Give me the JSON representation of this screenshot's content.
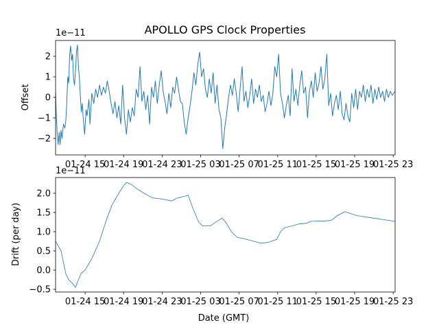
{
  "chart_data": [
    {
      "type": "line",
      "title": "APOLLO GPS Clock Properties",
      "xlabel": "",
      "ylabel": "Offset",
      "y_scale_label": "1e−11",
      "color": "#1f77b4",
      "x_units": "hours since 01-24 00:00 GMT",
      "xlim": [
        11.93,
        47.2
      ],
      "ylim": [
        -2.8,
        2.77
      ],
      "xticks": [
        15,
        19,
        23,
        27,
        31,
        35,
        39,
        43,
        47
      ],
      "xtick_labels": [
        "01-24 15",
        "01-24 19",
        "01-24 23",
        "01-25 03",
        "01-25 07",
        "01-25 11",
        "01-25 15",
        "01-25 19",
        "01-25 23"
      ],
      "yticks": [
        -2,
        -1,
        0,
        1,
        2
      ],
      "ytick_labels": [
        "−2",
        "−1",
        "0",
        "1",
        "2"
      ],
      "x": [
        11.93,
        12.0,
        12.1,
        12.2,
        12.3,
        12.4,
        12.5,
        12.6,
        12.75,
        12.9,
        13.0,
        13.1,
        13.2,
        13.3,
        13.4,
        13.5,
        13.6,
        13.7,
        13.8,
        13.9,
        14.0,
        14.1,
        14.2,
        14.3,
        14.4,
        14.5,
        14.6,
        14.7,
        14.8,
        14.95,
        15.1,
        15.2,
        15.4,
        15.5,
        15.7,
        15.9,
        16.1,
        16.3,
        16.5,
        16.7,
        16.9,
        17.1,
        17.3,
        17.5,
        17.7,
        17.9,
        18.1,
        18.3,
        18.5,
        18.7,
        18.9,
        19.1,
        19.3,
        19.5,
        19.7,
        19.9,
        20.1,
        20.3,
        20.5,
        20.7,
        20.9,
        21.1,
        21.3,
        21.5,
        21.7,
        21.9,
        22.1,
        22.3,
        22.5,
        22.7,
        22.9,
        23.1,
        23.3,
        23.5,
        23.7,
        23.9,
        24.1,
        24.3,
        24.5,
        24.7,
        24.9,
        25.1,
        25.3,
        25.5,
        25.7,
        25.9,
        26.1,
        26.3,
        26.5,
        26.7,
        26.9,
        27.1,
        27.3,
        27.5,
        27.7,
        27.9,
        28.1,
        28.3,
        28.5,
        28.7,
        28.9,
        29.1,
        29.3,
        29.5,
        29.7,
        29.9,
        30.1,
        30.3,
        30.5,
        30.7,
        30.9,
        31.1,
        31.3,
        31.5,
        31.7,
        31.9,
        32.1,
        32.3,
        32.5,
        32.7,
        32.9,
        33.1,
        33.3,
        33.5,
        33.7,
        33.9,
        34.1,
        34.3,
        34.5,
        34.7,
        34.9,
        35.1,
        35.3,
        35.5,
        35.7,
        35.9,
        36.1,
        36.3,
        36.5,
        36.7,
        36.9,
        37.1,
        37.3,
        37.5,
        37.7,
        37.9,
        38.1,
        38.3,
        38.5,
        38.7,
        38.9,
        39.1,
        39.3,
        39.5,
        39.7,
        39.9,
        40.1,
        40.3,
        40.5,
        40.7,
        40.9,
        41.1,
        41.3,
        41.5,
        41.7,
        41.9,
        42.1,
        42.3,
        42.5,
        42.7,
        42.9,
        43.1,
        43.3,
        43.5,
        43.7,
        43.9,
        44.1,
        44.3,
        44.5,
        44.7,
        44.9,
        45.1,
        45.3,
        45.5,
        45.7,
        45.9,
        46.1,
        46.3,
        46.5,
        46.7,
        46.9,
        47.2
      ],
      "y": [
        0.3,
        -0.8,
        -1.8,
        -2.3,
        -1.7,
        -2.3,
        -1.6,
        -2.0,
        -1.3,
        -1.5,
        -1.1,
        -0.2,
        1.0,
        0.7,
        2.1,
        2.5,
        1.8,
        2.1,
        0.9,
        0.6,
        1.3,
        2.2,
        2.55,
        1.5,
        1.0,
        0.1,
        -0.7,
        -0.3,
        -1.0,
        -1.8,
        -0.6,
        -0.9,
        -0.1,
        -1.3,
        0.2,
        -0.3,
        0.4,
        0.0,
        0.6,
        0.1,
        0.5,
        0.2,
        0.8,
        0.3,
        -0.3,
        -0.8,
        -0.2,
        -1.0,
        -0.4,
        -1.3,
        0.6,
        -1.0,
        -1.8,
        -0.6,
        -1.2,
        -0.5,
        -0.9,
        0.4,
        0.0,
        1.5,
        -0.2,
        0.3,
        -0.6,
        0.1,
        -1.3,
        0.5,
        0.0,
        0.8,
        -0.3,
        0.6,
        1.3,
        0.3,
        -0.2,
        -0.8,
        0.2,
        -0.5,
        0.5,
        0.2,
        1.0,
        0.4,
        -0.2,
        -0.3,
        -1.2,
        -1.8,
        -1.0,
        -0.4,
        0.3,
        1.2,
        0.6,
        1.6,
        2.2,
        1.0,
        1.4,
        0.4,
        0.0,
        0.9,
        0.2,
        1.2,
        -0.3,
        0.6,
        -0.6,
        -1.0,
        -2.5,
        -1.5,
        -0.8,
        0.0,
        0.6,
        0.1,
        0.9,
        0.2,
        -0.7,
        0.4,
        1.5,
        -0.2,
        0.3,
        -0.5,
        0.1,
        0.9,
        -0.3,
        0.4,
        0.0,
        0.6,
        -0.2,
        0.1,
        -0.7,
        -0.3,
        0.3,
        -0.4,
        0.2,
        1.5,
        1.0,
        2.1,
        0.2,
        -0.3,
        -1.0,
        -0.4,
        0.1,
        -0.9,
        1.4,
        -0.2,
        0.4,
        -0.4,
        0.6,
        1.3,
        0.2,
        0.5,
        -1.0,
        0.3,
        0.8,
        0.0,
        1.2,
        0.3,
        0.7,
        1.5,
        0.4,
        0.9,
        2.1,
        -0.4,
        0.2,
        -0.9,
        -0.3,
        0.1,
        -0.6,
        0.3,
        -0.8,
        -1.1,
        -0.3,
        -0.9,
        -1.2,
        0.2,
        -0.5,
        0.4,
        -0.6,
        0.3,
        0.0,
        0.6,
        -0.2,
        0.4,
        0.0,
        0.6,
        -0.3,
        0.4,
        -0.1,
        0.5,
        0.0,
        0.3,
        -0.2,
        0.4,
        0.0,
        0.3,
        0.1,
        0.3
      ]
    },
    {
      "type": "line",
      "title": "",
      "xlabel": "Date (GMT)",
      "ylabel": "Drift (per day)",
      "y_scale_label": "1e−11",
      "color": "#1f77b4",
      "x_units": "hours since 01-24 00:00 GMT",
      "xlim": [
        11.93,
        47.2
      ],
      "ylim": [
        -0.57,
        2.41
      ],
      "xticks": [
        15,
        19,
        23,
        27,
        31,
        35,
        39,
        43,
        47
      ],
      "xtick_labels": [
        "01-24 15",
        "01-24 19",
        "01-24 23",
        "01-25 03",
        "01-25 07",
        "01-25 11",
        "01-25 15",
        "01-25 19",
        "01-25 23"
      ],
      "yticks": [
        -0.5,
        0.0,
        0.5,
        1.0,
        1.5,
        2.0
      ],
      "ytick_labels": [
        "−0.5",
        "0.0",
        "0.5",
        "1.0",
        "1.5",
        "2.0"
      ],
      "x": [
        11.93,
        12.5,
        13.0,
        13.3,
        13.7,
        14.0,
        14.3,
        14.6,
        15.0,
        15.7,
        16.5,
        17.2,
        17.8,
        18.5,
        19.0,
        19.3,
        19.8,
        20.3,
        21.0,
        22.0,
        23.0,
        24.0,
        24.5,
        25.3,
        25.7,
        26.2,
        26.8,
        27.2,
        28.0,
        28.7,
        29.2,
        29.6,
        30.2,
        30.8,
        31.5,
        32.5,
        33.3,
        34.0,
        34.9,
        35.3,
        35.7,
        36.5,
        37.2,
        38.0,
        38.5,
        40.0,
        40.6,
        41.2,
        42.0,
        42.6,
        43.2,
        44.5,
        47.2
      ],
      "y": [
        0.75,
        0.5,
        -0.1,
        -0.25,
        -0.35,
        -0.45,
        -0.25,
        -0.08,
        0.0,
        0.3,
        0.75,
        1.3,
        1.7,
        2.0,
        2.2,
        2.28,
        2.23,
        2.13,
        2.02,
        1.88,
        1.85,
        1.8,
        1.87,
        1.92,
        1.95,
        1.6,
        1.25,
        1.15,
        1.15,
        1.27,
        1.35,
        1.25,
        1.0,
        0.85,
        0.82,
        0.75,
        0.7,
        0.72,
        0.8,
        1.0,
        1.1,
        1.15,
        1.2,
        1.22,
        1.27,
        1.28,
        1.3,
        1.42,
        1.52,
        1.47,
        1.42,
        1.37,
        1.27
      ]
    }
  ]
}
